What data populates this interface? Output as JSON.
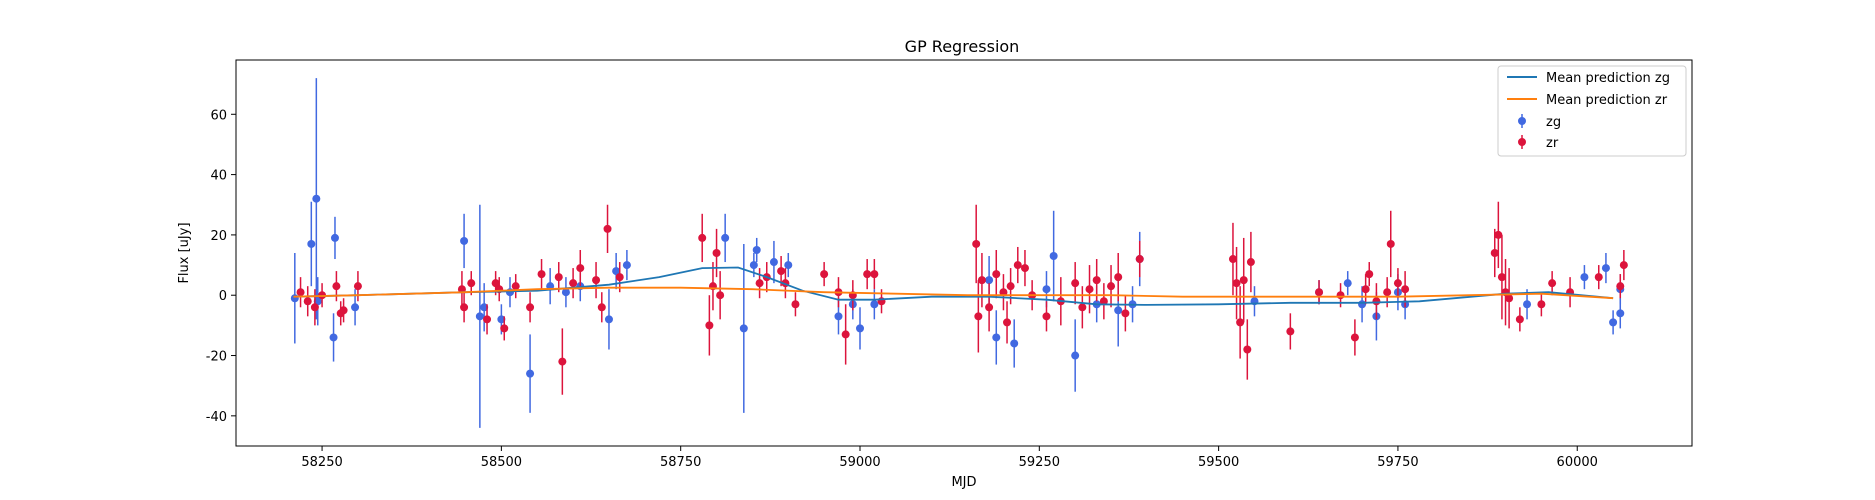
{
  "chart_data": {
    "type": "scatter",
    "title": "GP Regression",
    "xlabel": "MJD",
    "ylabel": "Flux [uJy]",
    "xlim": [
      58130,
      60160
    ],
    "ylim": [
      -50,
      78
    ],
    "xticks": [
      58250,
      58500,
      58750,
      59000,
      59250,
      59500,
      59750,
      60000
    ],
    "yticks": [
      -40,
      -20,
      0,
      20,
      40,
      60
    ],
    "grid": false,
    "legend_position": "top-right",
    "colors": {
      "mean_zg": "#1f77b4",
      "mean_zr": "#ff7f0e",
      "zg": "#4169e1",
      "zr": "#dc143c"
    },
    "lines": [
      {
        "name": "Mean prediction zg",
        "x": [
          58210,
          58300,
          58450,
          58550,
          58650,
          58720,
          58780,
          58830,
          58870,
          58920,
          58970,
          59020,
          59100,
          59180,
          59260,
          59330,
          59400,
          59500,
          59600,
          59700,
          59780,
          59900,
          59960,
          60050
        ],
        "y": [
          -0.5,
          0,
          1,
          1.5,
          3.5,
          6,
          9,
          9.2,
          6,
          1.5,
          -1.5,
          -1.5,
          -0.5,
          -0.5,
          -1.5,
          -3,
          -3.2,
          -3,
          -2.5,
          -2.5,
          -2,
          0.5,
          1,
          -1
        ]
      },
      {
        "name": "Mean prediction zr",
        "x": [
          58210,
          58300,
          58450,
          58550,
          58650,
          58750,
          58850,
          58950,
          59050,
          59150,
          59250,
          59350,
          59450,
          59550,
          59650,
          59750,
          59850,
          59950,
          60050
        ],
        "y": [
          -0.5,
          0,
          1,
          2,
          2.5,
          2.5,
          2,
          1,
          0.5,
          0,
          0,
          0,
          -0.5,
          -0.5,
          -0.5,
          -0.5,
          0,
          0.5,
          -1
        ]
      }
    ],
    "series": [
      {
        "name": "zg",
        "points": [
          [
            58212,
            -1,
            15
          ],
          [
            58235,
            17,
            14
          ],
          [
            58242,
            32,
            40
          ],
          [
            58244,
            -2,
            8
          ],
          [
            58268,
            19,
            7
          ],
          [
            58266,
            -14,
            8
          ],
          [
            58296,
            -4,
            6
          ],
          [
            58448,
            18,
            9
          ],
          [
            58470,
            -7,
            37
          ],
          [
            58476,
            -4,
            8
          ],
          [
            58500,
            -8,
            5
          ],
          [
            58512,
            1,
            5
          ],
          [
            58540,
            -26,
            13
          ],
          [
            58568,
            3,
            6
          ],
          [
            58590,
            1,
            5
          ],
          [
            58610,
            3,
            5
          ],
          [
            58650,
            -8,
            10
          ],
          [
            58660,
            8,
            6
          ],
          [
            58675,
            10,
            5
          ],
          [
            58812,
            19,
            8
          ],
          [
            58838,
            -11,
            28
          ],
          [
            58852,
            10,
            4
          ],
          [
            58856,
            15,
            4
          ],
          [
            58880,
            11,
            7
          ],
          [
            58900,
            10,
            4
          ],
          [
            58970,
            -7,
            6
          ],
          [
            58990,
            -3,
            5
          ],
          [
            59000,
            -11,
            7
          ],
          [
            59020,
            -3,
            5
          ],
          [
            59180,
            5,
            8
          ],
          [
            59190,
            -14,
            9
          ],
          [
            59215,
            -16,
            8
          ],
          [
            59260,
            2,
            6
          ],
          [
            59270,
            13,
            15
          ],
          [
            59300,
            -20,
            12
          ],
          [
            59330,
            -3,
            6
          ],
          [
            59360,
            -5,
            12
          ],
          [
            59380,
            -3,
            6
          ],
          [
            59390,
            12,
            9
          ],
          [
            59550,
            -2,
            5
          ],
          [
            59640,
            1,
            4
          ],
          [
            59680,
            4,
            4
          ],
          [
            59700,
            -3,
            6
          ],
          [
            59720,
            -7,
            8
          ],
          [
            59750,
            1,
            6
          ],
          [
            59760,
            -3,
            5
          ],
          [
            59930,
            -3,
            5
          ],
          [
            60010,
            6,
            4
          ],
          [
            60040,
            9,
            5
          ],
          [
            60050,
            -9,
            4
          ],
          [
            60060,
            -6,
            5
          ],
          [
            60060,
            2,
            5
          ]
        ]
      },
      {
        "name": "zr",
        "points": [
          [
            58220,
            1,
            5
          ],
          [
            58230,
            -2,
            5
          ],
          [
            58240,
            -4,
            6
          ],
          [
            58250,
            0,
            4
          ],
          [
            58270,
            3,
            5
          ],
          [
            58276,
            -6,
            4
          ],
          [
            58280,
            -5,
            4
          ],
          [
            58300,
            3,
            5
          ],
          [
            58445,
            2,
            6
          ],
          [
            58448,
            -4,
            5
          ],
          [
            58458,
            4,
            4
          ],
          [
            58480,
            -8,
            5
          ],
          [
            58492,
            4,
            4
          ],
          [
            58497,
            2,
            4
          ],
          [
            58504,
            -11,
            4
          ],
          [
            58520,
            3,
            4
          ],
          [
            58540,
            -4,
            5
          ],
          [
            58556,
            7,
            5
          ],
          [
            58580,
            6,
            5
          ],
          [
            58585,
            -22,
            11
          ],
          [
            58600,
            4,
            5
          ],
          [
            58610,
            9,
            6
          ],
          [
            58632,
            5,
            6
          ],
          [
            58640,
            -4,
            5
          ],
          [
            58648,
            22,
            8
          ],
          [
            58665,
            6,
            5
          ],
          [
            58780,
            19,
            8
          ],
          [
            58790,
            -10,
            10
          ],
          [
            58795,
            3,
            8
          ],
          [
            58800,
            14,
            8
          ],
          [
            58805,
            0,
            8
          ],
          [
            58860,
            4,
            5
          ],
          [
            58870,
            6,
            5
          ],
          [
            58890,
            8,
            5
          ],
          [
            58896,
            4,
            5
          ],
          [
            58910,
            -3,
            4
          ],
          [
            58950,
            7,
            4
          ],
          [
            58970,
            1,
            5
          ],
          [
            58980,
            -13,
            10
          ],
          [
            58990,
            0,
            5
          ],
          [
            59010,
            7,
            5
          ],
          [
            59020,
            7,
            5
          ],
          [
            59030,
            -2,
            4
          ],
          [
            59162,
            17,
            13
          ],
          [
            59165,
            -7,
            12
          ],
          [
            59170,
            5,
            9
          ],
          [
            59180,
            -4,
            8
          ],
          [
            59190,
            7,
            8
          ],
          [
            59200,
            1,
            6
          ],
          [
            59205,
            -9,
            7
          ],
          [
            59210,
            3,
            6
          ],
          [
            59220,
            10,
            6
          ],
          [
            59230,
            9,
            6
          ],
          [
            59240,
            0,
            5
          ],
          [
            59260,
            -7,
            5
          ],
          [
            59280,
            -2,
            8
          ],
          [
            59300,
            4,
            7
          ],
          [
            59310,
            -4,
            7
          ],
          [
            59320,
            2,
            8
          ],
          [
            59330,
            5,
            7
          ],
          [
            59340,
            -2,
            6
          ],
          [
            59350,
            3,
            7
          ],
          [
            59360,
            6,
            8
          ],
          [
            59370,
            -6,
            6
          ],
          [
            59390,
            12,
            6
          ],
          [
            59520,
            12,
            12
          ],
          [
            59525,
            4,
            12
          ],
          [
            59530,
            -9,
            12
          ],
          [
            59535,
            5,
            14
          ],
          [
            59540,
            -18,
            10
          ],
          [
            59545,
            11,
            10
          ],
          [
            59600,
            -12,
            6
          ],
          [
            59640,
            1,
            4
          ],
          [
            59670,
            0,
            4
          ],
          [
            59690,
            -14,
            6
          ],
          [
            59705,
            2,
            5
          ],
          [
            59710,
            7,
            4
          ],
          [
            59720,
            -2,
            6
          ],
          [
            59735,
            1,
            5
          ],
          [
            59740,
            17,
            11
          ],
          [
            59750,
            4,
            5
          ],
          [
            59760,
            2,
            6
          ],
          [
            59885,
            14,
            8
          ],
          [
            59890,
            20,
            11
          ],
          [
            59895,
            6,
            14
          ],
          [
            59900,
            1,
            11
          ],
          [
            59905,
            -1,
            10
          ],
          [
            59920,
            -8,
            4
          ],
          [
            59950,
            -3,
            4
          ],
          [
            59965,
            4,
            4
          ],
          [
            59990,
            1,
            5
          ],
          [
            60030,
            6,
            4
          ],
          [
            60060,
            3,
            4
          ],
          [
            60065,
            10,
            5
          ]
        ]
      }
    ]
  }
}
